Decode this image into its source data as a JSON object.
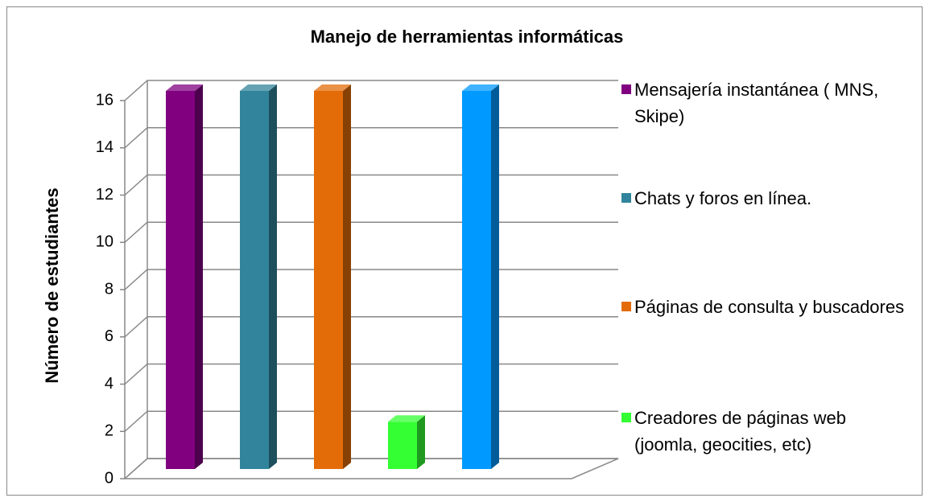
{
  "chart_data": {
    "type": "bar3d",
    "title": "Manejo de herramientas informáticas",
    "ylabel": "Número de estudiantes",
    "ylim": [
      0,
      16
    ],
    "yticks": [
      0,
      2,
      4,
      6,
      8,
      10,
      12,
      14,
      16
    ],
    "grid": true,
    "series": [
      {
        "name": "Mensajería instantánea ( MNS, Skipe)",
        "color": "#800080",
        "values": [
          16
        ]
      },
      {
        "name": "Chats y foros en línea.",
        "color": "#31849b",
        "values": [
          16
        ]
      },
      {
        "name": "Páginas de consulta y buscadores",
        "color": "#e36c09",
        "values": [
          16
        ]
      },
      {
        "name": "Creadores de páginas web (joomla, geocities, etc)",
        "color": "#33ff33",
        "values": [
          2
        ]
      },
      {
        "color": "#0099ff",
        "values": [
          16
        ]
      }
    ]
  }
}
